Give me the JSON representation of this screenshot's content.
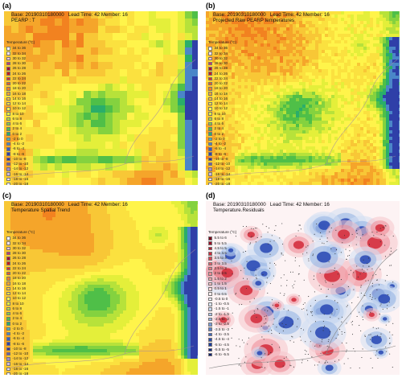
{
  "panels": [
    {
      "letter": "(a)",
      "base": "Base: 20190310180000",
      "lead": "Lead Time: 42 Member: 16",
      "subtitle": "PEARP : T",
      "kind": "raw"
    },
    {
      "letter": "(b)",
      "base": "Base: 20190310180000",
      "lead": "Lead Time: 42 Member: 16",
      "subtitle": "Projected Raw PEARP temperatures",
      "kind": "projected"
    },
    {
      "letter": "(c)",
      "base": "Base: 20190310180000",
      "lead": "Lead Time: 42 Member: 16",
      "subtitle": "Temperature Spatial Trend",
      "kind": "trend"
    },
    {
      "letter": "(d)",
      "base": "Base: 20190310180000",
      "lead": "Lead Time: 42 Member: 16",
      "subtitle": "Temperature.Residuals",
      "kind": "residual"
    }
  ],
  "temp_legend": {
    "title": "Temperature (°C)",
    "classes": [
      {
        "label": "34 to 36",
        "color": "#ffffff"
      },
      {
        "label": "32 to 34",
        "color": "#f7e4ef"
      },
      {
        "label": "30 to 32",
        "color": "#f0bfd3"
      },
      {
        "label": "28 to 30",
        "color": "#c8356b"
      },
      {
        "label": "26 to 28",
        "color": "#a8102e"
      },
      {
        "label": "24 to 26",
        "color": "#c61a1a"
      },
      {
        "label": "22 to 24",
        "color": "#e0311e"
      },
      {
        "label": "20 to 22",
        "color": "#ec5a1c"
      },
      {
        "label": "18 to 20",
        "color": "#f28220"
      },
      {
        "label": "16 to 18",
        "color": "#f5a52a"
      },
      {
        "label": "14 to 16",
        "color": "#f8c736"
      },
      {
        "label": "12 to 14",
        "color": "#fbe13f"
      },
      {
        "label": "10 to 12",
        "color": "#fff44a"
      },
      {
        "label": "8 to 10",
        "color": "#e4ef3a"
      },
      {
        "label": "6 to 8",
        "color": "#b7e23a"
      },
      {
        "label": "4 to 6",
        "color": "#84d23f"
      },
      {
        "label": "2 to 4",
        "color": "#4fbf48"
      },
      {
        "label": "0 to 2",
        "color": "#2aae6a"
      },
      {
        "label": "-2 to 0",
        "color": "#4fb4b8"
      },
      {
        "label": "-4 to -2",
        "color": "#4a86c8"
      },
      {
        "label": "-6 to -4",
        "color": "#3a5cc0"
      },
      {
        "label": "-8 to -6",
        "color": "#2f3fa8"
      },
      {
        "label": "-10 to -8",
        "color": "#3b2f8f"
      },
      {
        "label": "-12 to -10",
        "color": "#6d5aa8"
      },
      {
        "label": "-14 to -12",
        "color": "#a58cc7"
      },
      {
        "label": "-16 to -14",
        "color": "#cdb9dd"
      },
      {
        "label": "-18 to -16",
        "color": "#e6dbee"
      },
      {
        "label": "-20 to -18",
        "color": "#f7f2f9"
      }
    ]
  },
  "residual_legend": {
    "title": "Temperature (°C)",
    "classes": [
      {
        "label": "5.5 to 6",
        "color": "#7a0018"
      },
      {
        "label": "5 to 5.5",
        "color": "#9a0a24"
      },
      {
        "label": "4.5 to 5",
        "color": "#b81a30"
      },
      {
        "label": "4 to 4.5",
        "color": "#cc2a3c"
      },
      {
        "label": "3.5 to 4",
        "color": "#dc4050"
      },
      {
        "label": "3 to 3.5",
        "color": "#e65866"
      },
      {
        "label": "2.5 to 3",
        "color": "#ee707c"
      },
      {
        "label": "2 to 2.5",
        "color": "#f28a94"
      },
      {
        "label": "1.5 to 2",
        "color": "#f6a4ac"
      },
      {
        "label": "1 to 1.5",
        "color": "#f9bec4"
      },
      {
        "label": "0.5 to 1",
        "color": "#fbd6da"
      },
      {
        "label": "0 to 0.5",
        "color": "#fdecee"
      },
      {
        "label": "-0.5 to 0",
        "color": "#eef2fb"
      },
      {
        "label": "-1 to -0.5",
        "color": "#dce6f7"
      },
      {
        "label": "-1.5 to -1",
        "color": "#c6d6f1"
      },
      {
        "label": "-2 to -1.5",
        "color": "#aec4ea"
      },
      {
        "label": "-2.5 to -2",
        "color": "#94b0e2"
      },
      {
        "label": "-3 to -2.5",
        "color": "#789ad8"
      },
      {
        "label": "-3.5 to -3",
        "color": "#5a80cc"
      },
      {
        "label": "-4 to -3.5",
        "color": "#3f66be"
      },
      {
        "label": "-4.5 to -4",
        "color": "#2a4eae"
      },
      {
        "label": "-5 to -4.5",
        "color": "#1a3a9c"
      },
      {
        "label": "-5.5 to -5",
        "color": "#0f2a88"
      },
      {
        "label": "-6 to -5.5",
        "color": "#081c70"
      }
    ]
  }
}
